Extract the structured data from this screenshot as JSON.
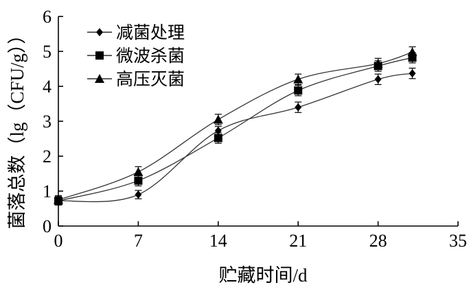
{
  "chart_data": {
    "type": "scatter",
    "xlabel": "贮藏时间/d",
    "ylabel": "菌落总数（lg（CFU/g））",
    "xlim": [
      0,
      35
    ],
    "ylim": [
      0,
      6
    ],
    "xticks": [
      0,
      7,
      14,
      21,
      28,
      35
    ],
    "yticks": [
      0,
      1,
      2,
      3,
      4,
      5,
      6
    ],
    "x": [
      0,
      7,
      14,
      21,
      28,
      31
    ],
    "legend_placement": "top-left",
    "grid": false,
    "series": [
      {
        "name": "减菌处理",
        "marker": "diamond",
        "values": [
          0.72,
          0.9,
          2.73,
          3.4,
          4.2,
          4.37
        ],
        "error": [
          0.12,
          0.12,
          0.12,
          0.15,
          0.15,
          0.15
        ]
      },
      {
        "name": "微波杀菌",
        "marker": "square",
        "values": [
          0.72,
          1.3,
          2.52,
          3.88,
          4.58,
          4.82
        ],
        "error": [
          0.12,
          0.15,
          0.15,
          0.15,
          0.15,
          0.15
        ]
      },
      {
        "name": "高压灭菌",
        "marker": "triangle",
        "values": [
          0.75,
          1.55,
          3.05,
          4.2,
          4.65,
          4.98
        ],
        "error": [
          0.12,
          0.15,
          0.15,
          0.15,
          0.15,
          0.15
        ]
      }
    ]
  }
}
